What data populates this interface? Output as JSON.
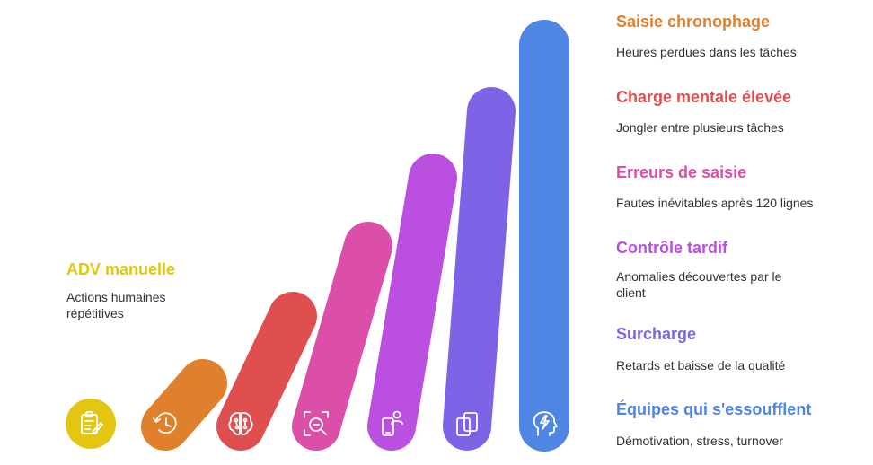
{
  "steps": [
    {
      "title": "ADV manuelle",
      "desc": "Actions humaines répétitives",
      "color": "#E2C60F",
      "icon": "clipboard-edit-icon"
    },
    {
      "title": "Saisie chronophage",
      "desc": "Heures perdues dans les tâches",
      "color": "#E07F2C",
      "icon": "history-clock-icon"
    },
    {
      "title": "Charge mentale élevée",
      "desc": "Jongler entre plusieurs tâches",
      "color": "#E04F4F",
      "icon": "brain-circuit-icon"
    },
    {
      "title": "Erreurs de saisie",
      "desc": "Fautes inévitables après 120 lignes",
      "color": "#DB4FA8",
      "icon": "zoom-out-scan-icon"
    },
    {
      "title": "Contrôle tardif",
      "desc": "Anomalies découvertes par le client",
      "color": "#BA4FE0",
      "icon": "mobile-user-icon"
    },
    {
      "title": "Surcharge",
      "desc": "Retards et baisse de la qualité",
      "color": "#7F63E6",
      "icon": "stacked-files-icon"
    },
    {
      "title": "Équipes qui s'essoufflent",
      "desc": "Démotivation, stress, turnover",
      "color": "#4F86E3",
      "icon": "head-bolt-icon"
    }
  ]
}
